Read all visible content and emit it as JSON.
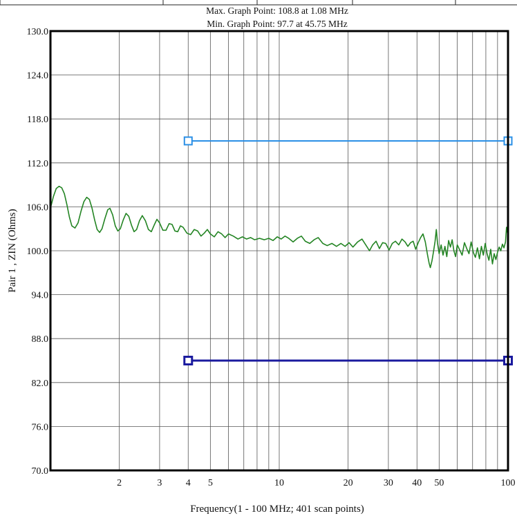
{
  "chart_data": {
    "type": "line",
    "info_lines": {
      "max": "Max. Graph Point: 108.8 at 1.08 MHz",
      "min": "Min. Graph Point: 97.7 at 45.75 MHz"
    },
    "xlabel": "Frequency(1 - 100 MHz; 401 scan points)",
    "ylabel": "Pair 1 , ZIN (Ohms)",
    "xscale": "log",
    "xlim": [
      1,
      100
    ],
    "ylim": [
      70,
      130
    ],
    "grid": true,
    "x_ticks": [
      {
        "value": 2,
        "label": "2"
      },
      {
        "value": 3,
        "label": "3"
      },
      {
        "value": 4,
        "label": "4"
      },
      {
        "value": 5,
        "label": "5"
      },
      {
        "value": 10,
        "label": "10"
      },
      {
        "value": 20,
        "label": "20"
      },
      {
        "value": 30,
        "label": "30"
      },
      {
        "value": 40,
        "label": "40"
      },
      {
        "value": 50,
        "label": "50"
      },
      {
        "value": 100,
        "label": "100"
      }
    ],
    "x_gridlines": [
      2,
      3,
      4,
      5,
      6,
      7,
      8,
      9,
      10,
      20,
      30,
      40,
      50,
      60,
      70,
      80,
      90
    ],
    "y_ticks": [
      {
        "value": 70,
        "label": "70.0"
      },
      {
        "value": 76,
        "label": "76.0"
      },
      {
        "value": 82,
        "label": "82.0"
      },
      {
        "value": 88,
        "label": "88.0"
      },
      {
        "value": 94,
        "label": "94.0"
      },
      {
        "value": 100,
        "label": "100.0"
      },
      {
        "value": 106,
        "label": "106.0"
      },
      {
        "value": 112,
        "label": "112.0"
      },
      {
        "value": 118,
        "label": "118.0"
      },
      {
        "value": 124,
        "label": "124.0"
      },
      {
        "value": 130,
        "label": "130.0"
      }
    ],
    "limit_lines": [
      {
        "role": "upper-limit",
        "y": 115,
        "x": [
          4,
          100
        ],
        "color": "#2a8fe6",
        "width": 2
      },
      {
        "role": "lower-limit",
        "y": 85,
        "x": [
          4,
          100
        ],
        "color": "#1a1a9e",
        "width": 3
      }
    ],
    "series": [
      {
        "color": "#238423",
        "points": [
          [
            1.0,
            105.8
          ],
          [
            1.03,
            107.4
          ],
          [
            1.06,
            108.5
          ],
          [
            1.09,
            108.8
          ],
          [
            1.12,
            108.6
          ],
          [
            1.15,
            107.8
          ],
          [
            1.18,
            106.3
          ],
          [
            1.21,
            104.6
          ],
          [
            1.24,
            103.4
          ],
          [
            1.28,
            103.1
          ],
          [
            1.32,
            103.8
          ],
          [
            1.36,
            105.4
          ],
          [
            1.4,
            106.7
          ],
          [
            1.44,
            107.3
          ],
          [
            1.48,
            107.0
          ],
          [
            1.52,
            105.8
          ],
          [
            1.56,
            104.2
          ],
          [
            1.6,
            102.9
          ],
          [
            1.64,
            102.5
          ],
          [
            1.68,
            103.0
          ],
          [
            1.73,
            104.4
          ],
          [
            1.78,
            105.6
          ],
          [
            1.82,
            105.8
          ],
          [
            1.87,
            104.9
          ],
          [
            1.92,
            103.4
          ],
          [
            1.97,
            102.7
          ],
          [
            2.02,
            103.0
          ],
          [
            2.08,
            104.2
          ],
          [
            2.14,
            105.1
          ],
          [
            2.2,
            104.7
          ],
          [
            2.26,
            103.5
          ],
          [
            2.32,
            102.6
          ],
          [
            2.38,
            102.9
          ],
          [
            2.45,
            104.1
          ],
          [
            2.52,
            104.8
          ],
          [
            2.6,
            104.1
          ],
          [
            2.68,
            102.9
          ],
          [
            2.76,
            102.6
          ],
          [
            2.84,
            103.5
          ],
          [
            2.92,
            104.3
          ],
          [
            3.0,
            103.8
          ],
          [
            3.1,
            102.8
          ],
          [
            3.2,
            102.8
          ],
          [
            3.3,
            103.7
          ],
          [
            3.4,
            103.6
          ],
          [
            3.5,
            102.7
          ],
          [
            3.6,
            102.6
          ],
          [
            3.7,
            103.4
          ],
          [
            3.8,
            103.2
          ],
          [
            3.95,
            102.4
          ],
          [
            4.1,
            102.2
          ],
          [
            4.25,
            102.9
          ],
          [
            4.4,
            102.7
          ],
          [
            4.55,
            102.0
          ],
          [
            4.7,
            102.4
          ],
          [
            4.85,
            102.9
          ],
          [
            5.0,
            102.3
          ],
          [
            5.2,
            101.9
          ],
          [
            5.4,
            102.6
          ],
          [
            5.6,
            102.3
          ],
          [
            5.8,
            101.8
          ],
          [
            6.0,
            102.3
          ],
          [
            6.3,
            102.0
          ],
          [
            6.6,
            101.6
          ],
          [
            6.9,
            101.9
          ],
          [
            7.2,
            101.6
          ],
          [
            7.5,
            101.8
          ],
          [
            7.8,
            101.5
          ],
          [
            8.2,
            101.7
          ],
          [
            8.6,
            101.5
          ],
          [
            9.0,
            101.7
          ],
          [
            9.4,
            101.4
          ],
          [
            9.8,
            101.9
          ],
          [
            10.2,
            101.6
          ],
          [
            10.6,
            102.0
          ],
          [
            11.0,
            101.7
          ],
          [
            11.5,
            101.2
          ],
          [
            12.0,
            101.7
          ],
          [
            12.5,
            102.0
          ],
          [
            13.0,
            101.3
          ],
          [
            13.6,
            101.0
          ],
          [
            14.2,
            101.5
          ],
          [
            14.8,
            101.8
          ],
          [
            15.5,
            101.0
          ],
          [
            16.2,
            100.7
          ],
          [
            17.0,
            101.0
          ],
          [
            17.8,
            100.6
          ],
          [
            18.6,
            101.0
          ],
          [
            19.4,
            100.6
          ],
          [
            20.2,
            101.1
          ],
          [
            21.0,
            100.5
          ],
          [
            22.0,
            101.2
          ],
          [
            23.0,
            101.6
          ],
          [
            24.0,
            100.7
          ],
          [
            24.8,
            100.0
          ],
          [
            25.6,
            100.8
          ],
          [
            26.5,
            101.3
          ],
          [
            27.4,
            100.3
          ],
          [
            28.3,
            101.1
          ],
          [
            29.2,
            101.0
          ],
          [
            30.2,
            100.1
          ],
          [
            31.2,
            101.0
          ],
          [
            32.2,
            101.3
          ],
          [
            33.3,
            100.8
          ],
          [
            34.4,
            101.6
          ],
          [
            35.5,
            101.2
          ],
          [
            36.5,
            100.6
          ],
          [
            37.5,
            101.1
          ],
          [
            38.5,
            101.3
          ],
          [
            39.5,
            100.2
          ],
          [
            40.5,
            101.1
          ],
          [
            41.5,
            101.8
          ],
          [
            42.5,
            102.3
          ],
          [
            43.5,
            101.2
          ],
          [
            44.5,
            99.4
          ],
          [
            45.2,
            98.3
          ],
          [
            45.75,
            97.7
          ],
          [
            46.5,
            98.6
          ],
          [
            47.2,
            99.8
          ],
          [
            48.0,
            101.3
          ],
          [
            48.6,
            102.9
          ],
          [
            49.2,
            101.0
          ],
          [
            50.0,
            99.6
          ],
          [
            51.0,
            100.8
          ],
          [
            52.0,
            99.4
          ],
          [
            53.0,
            100.6
          ],
          [
            54.0,
            99.2
          ],
          [
            55.0,
            101.4
          ],
          [
            56.0,
            100.5
          ],
          [
            57.0,
            101.5
          ],
          [
            58.0,
            100.0
          ],
          [
            59.0,
            99.2
          ],
          [
            60.0,
            100.8
          ],
          [
            61.5,
            100.1
          ],
          [
            63.0,
            99.4
          ],
          [
            64.5,
            101.1
          ],
          [
            66.0,
            100.3
          ],
          [
            67.5,
            99.6
          ],
          [
            69.0,
            101.2
          ],
          [
            70.5,
            99.8
          ],
          [
            72.0,
            99.1
          ],
          [
            73.5,
            100.4
          ],
          [
            75.0,
            98.9
          ],
          [
            76.5,
            100.6
          ],
          [
            78.0,
            99.4
          ],
          [
            79.5,
            101.0
          ],
          [
            81.0,
            99.6
          ],
          [
            82.5,
            98.7
          ],
          [
            84.0,
            100.2
          ],
          [
            85.5,
            98.2
          ],
          [
            87.0,
            99.6
          ],
          [
            88.5,
            98.8
          ],
          [
            90.0,
            99.8
          ],
          [
            91.5,
            100.5
          ],
          [
            93.0,
            100.0
          ],
          [
            94.5,
            100.9
          ],
          [
            96.0,
            100.4
          ],
          [
            97.5,
            101.2
          ],
          [
            98.5,
            103.2
          ],
          [
            99.5,
            102.4
          ],
          [
            100.0,
            102.6
          ]
        ]
      }
    ]
  }
}
